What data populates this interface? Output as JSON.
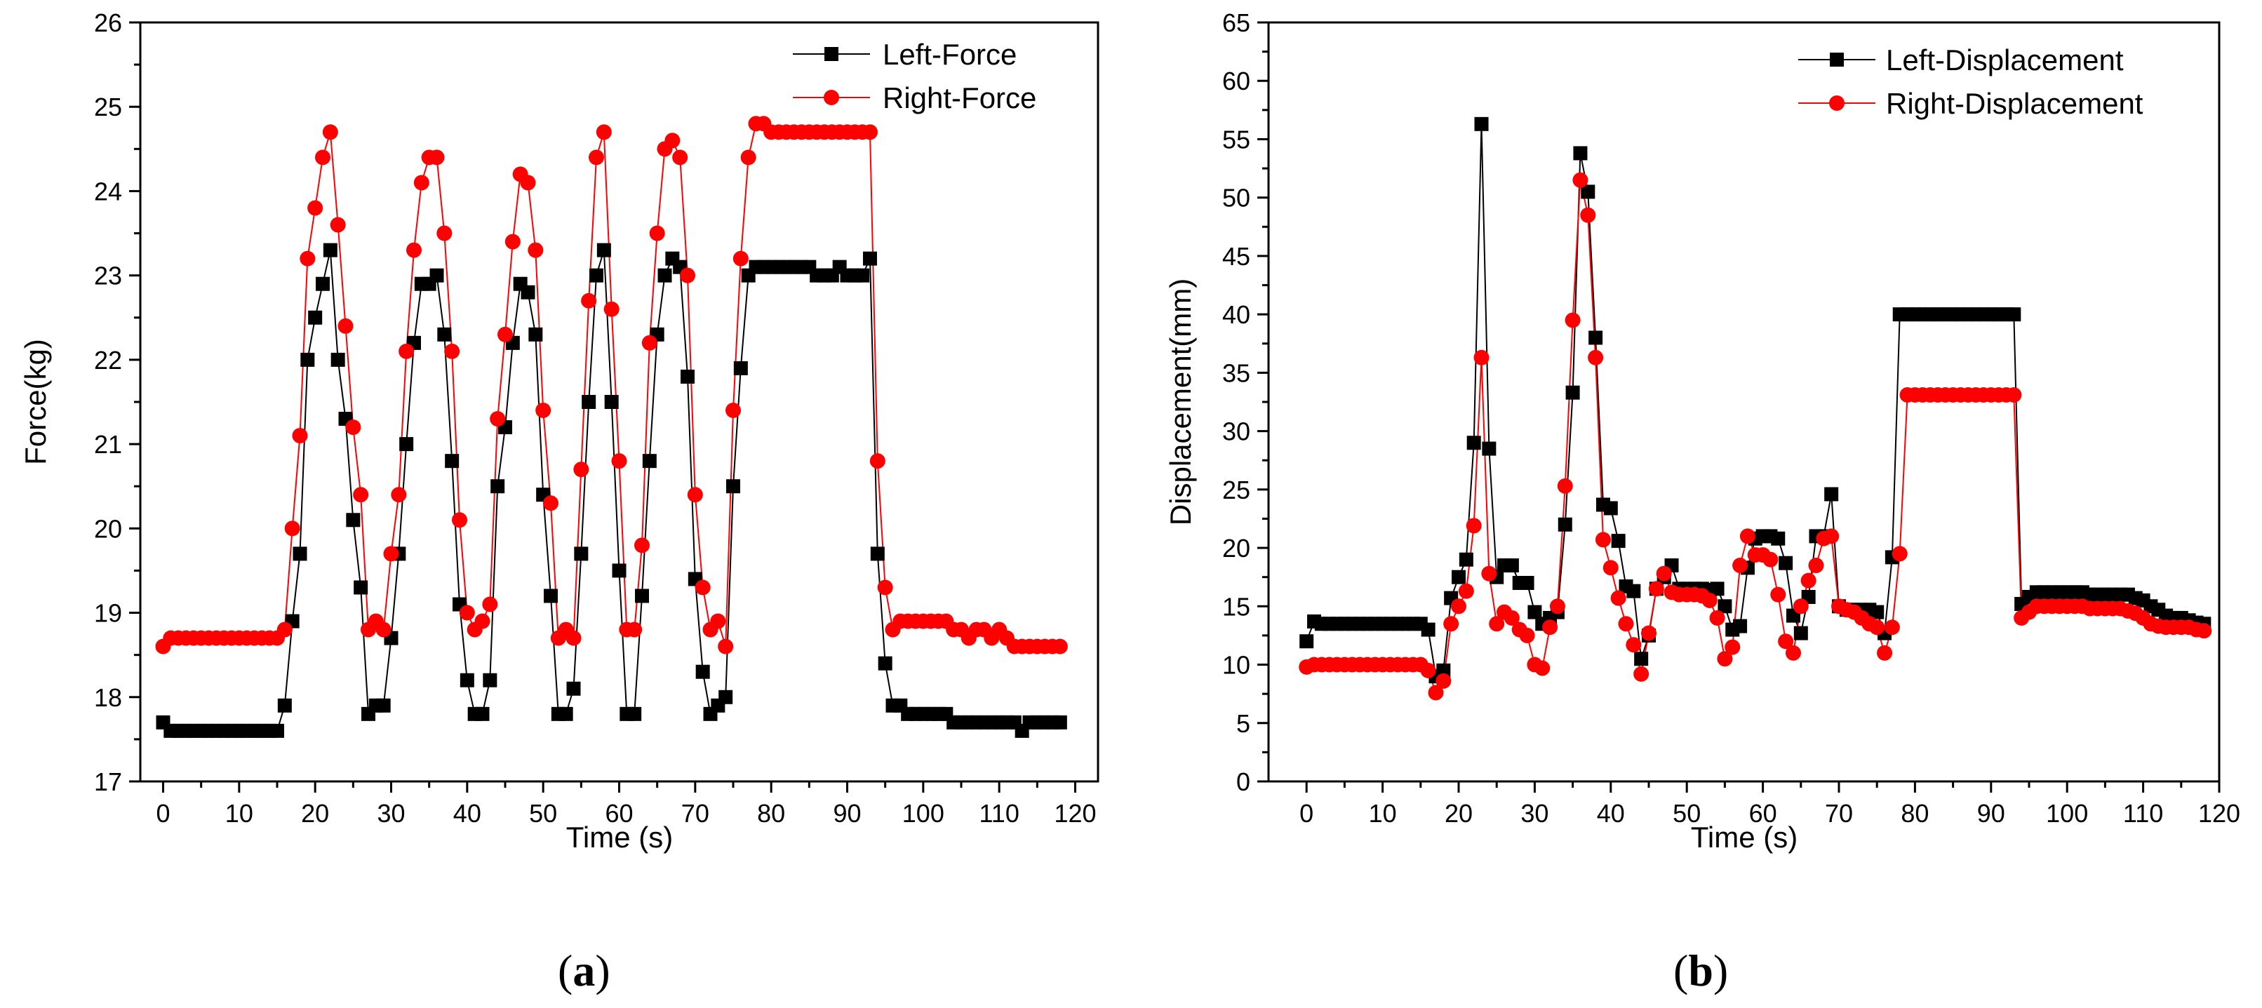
{
  "chart_data": [
    {
      "type": "line",
      "panel_label": "a",
      "title": "",
      "xlabel": "Time (s)",
      "ylabel": "Force(kg)",
      "xlim": [
        -3,
        123
      ],
      "ylim": [
        17,
        26
      ],
      "xticks": [
        0,
        10,
        20,
        30,
        40,
        50,
        60,
        70,
        80,
        90,
        100,
        110,
        120
      ],
      "yticks": [
        17,
        18,
        19,
        20,
        21,
        22,
        23,
        24,
        25,
        26
      ],
      "legend_position": "top-right",
      "series": [
        {
          "name": "Left-Force",
          "color": "#000000",
          "marker": "square",
          "x": [
            0,
            1,
            2,
            3,
            4,
            5,
            6,
            7,
            8,
            9,
            10,
            11,
            12,
            13,
            14,
            15,
            16,
            17,
            18,
            19,
            20,
            21,
            22,
            23,
            24,
            25,
            26,
            27,
            28,
            29,
            30,
            31,
            32,
            33,
            34,
            35,
            36,
            37,
            38,
            39,
            40,
            41,
            42,
            43,
            44,
            45,
            46,
            47,
            48,
            49,
            50,
            51,
            52,
            53,
            54,
            55,
            56,
            57,
            58,
            59,
            60,
            61,
            62,
            63,
            64,
            65,
            66,
            67,
            68,
            69,
            70,
            71,
            72,
            73,
            74,
            75,
            76,
            77,
            78,
            79,
            80,
            81,
            82,
            83,
            84,
            85,
            86,
            87,
            88,
            89,
            90,
            91,
            92,
            93,
            94,
            95,
            96,
            97,
            98,
            99,
            100,
            101,
            102,
            103,
            104,
            105,
            106,
            107,
            108,
            109,
            110,
            111,
            112,
            113,
            114,
            115,
            116,
            117,
            118
          ],
          "y": [
            17.7,
            17.6,
            17.6,
            17.6,
            17.6,
            17.6,
            17.6,
            17.6,
            17.6,
            17.6,
            17.6,
            17.6,
            17.6,
            17.6,
            17.6,
            17.6,
            17.9,
            18.9,
            19.7,
            22.0,
            22.5,
            22.9,
            23.3,
            22.0,
            21.3,
            20.1,
            19.3,
            17.8,
            17.9,
            17.9,
            18.7,
            19.7,
            21.0,
            22.2,
            22.9,
            22.9,
            23.0,
            22.3,
            20.8,
            19.1,
            18.2,
            17.8,
            17.8,
            18.2,
            20.5,
            21.2,
            22.2,
            22.9,
            22.8,
            22.3,
            20.4,
            19.2,
            17.8,
            17.8,
            18.1,
            19.7,
            21.5,
            23.0,
            23.3,
            21.5,
            19.5,
            17.8,
            17.8,
            19.2,
            20.8,
            22.3,
            23.0,
            23.2,
            23.1,
            21.8,
            19.4,
            18.3,
            17.8,
            17.9,
            18.0,
            20.5,
            21.9,
            23.0,
            23.1,
            23.1,
            23.1,
            23.1,
            23.1,
            23.1,
            23.1,
            23.1,
            23.0,
            23.0,
            23.0,
            23.1,
            23.0,
            23.0,
            23.0,
            23.2,
            19.7,
            18.4,
            17.9,
            17.9,
            17.8,
            17.8,
            17.8,
            17.8,
            17.8,
            17.8,
            17.7,
            17.7,
            17.7,
            17.7,
            17.7,
            17.7,
            17.7,
            17.7,
            17.7,
            17.6,
            17.7,
            17.7,
            17.7,
            17.7,
            17.7
          ]
        },
        {
          "name": "Right-Force",
          "color": "#ff0000",
          "marker": "circle",
          "x": [
            0,
            1,
            2,
            3,
            4,
            5,
            6,
            7,
            8,
            9,
            10,
            11,
            12,
            13,
            14,
            15,
            16,
            17,
            18,
            19,
            20,
            21,
            22,
            23,
            24,
            25,
            26,
            27,
            28,
            29,
            30,
            31,
            32,
            33,
            34,
            35,
            36,
            37,
            38,
            39,
            40,
            41,
            42,
            43,
            44,
            45,
            46,
            47,
            48,
            49,
            50,
            51,
            52,
            53,
            54,
            55,
            56,
            57,
            58,
            59,
            60,
            61,
            62,
            63,
            64,
            65,
            66,
            67,
            68,
            69,
            70,
            71,
            72,
            73,
            74,
            75,
            76,
            77,
            78,
            79,
            80,
            81,
            82,
            83,
            84,
            85,
            86,
            87,
            88,
            89,
            90,
            91,
            92,
            93,
            94,
            95,
            96,
            97,
            98,
            99,
            100,
            101,
            102,
            103,
            104,
            105,
            106,
            107,
            108,
            109,
            110,
            111,
            112,
            113,
            114,
            115,
            116,
            117,
            118
          ],
          "y": [
            18.6,
            18.7,
            18.7,
            18.7,
            18.7,
            18.7,
            18.7,
            18.7,
            18.7,
            18.7,
            18.7,
            18.7,
            18.7,
            18.7,
            18.7,
            18.7,
            18.8,
            20.0,
            21.1,
            23.2,
            23.8,
            24.4,
            24.7,
            23.6,
            22.4,
            21.2,
            20.4,
            18.8,
            18.9,
            18.8,
            19.7,
            20.4,
            22.1,
            23.3,
            24.1,
            24.4,
            24.4,
            23.5,
            22.1,
            20.1,
            19.0,
            18.8,
            18.9,
            19.1,
            21.3,
            22.3,
            23.4,
            24.2,
            24.1,
            23.3,
            21.4,
            20.3,
            18.7,
            18.8,
            18.7,
            20.7,
            22.7,
            24.4,
            24.7,
            22.6,
            20.8,
            18.8,
            18.8,
            19.8,
            22.2,
            23.5,
            24.5,
            24.6,
            24.4,
            23.0,
            20.4,
            19.3,
            18.8,
            18.9,
            18.6,
            21.4,
            23.2,
            24.4,
            24.8,
            24.8,
            24.7,
            24.7,
            24.7,
            24.7,
            24.7,
            24.7,
            24.7,
            24.7,
            24.7,
            24.7,
            24.7,
            24.7,
            24.7,
            24.7,
            20.8,
            19.3,
            18.8,
            18.9,
            18.9,
            18.9,
            18.9,
            18.9,
            18.9,
            18.9,
            18.8,
            18.8,
            18.7,
            18.8,
            18.8,
            18.7,
            18.8,
            18.7,
            18.6,
            18.6,
            18.6,
            18.6,
            18.6,
            18.6,
            18.6
          ]
        }
      ]
    },
    {
      "type": "line",
      "panel_label": "b",
      "title": "",
      "xlabel": "Time (s)",
      "ylabel": "Displacement(mm)",
      "xlim": [
        -5,
        120
      ],
      "ylim": [
        0,
        65
      ],
      "xticks": [
        0,
        10,
        20,
        30,
        40,
        50,
        60,
        70,
        80,
        90,
        100,
        110,
        120
      ],
      "yticks": [
        0,
        5,
        10,
        15,
        20,
        25,
        30,
        35,
        40,
        45,
        50,
        55,
        60,
        65
      ],
      "legend_position": "top-right",
      "series": [
        {
          "name": "Left-Displacement",
          "color": "#000000",
          "marker": "square",
          "x": [
            0,
            1,
            2,
            3,
            4,
            5,
            6,
            7,
            8,
            9,
            10,
            11,
            12,
            13,
            14,
            15,
            16,
            17,
            18,
            19,
            20,
            21,
            22,
            23,
            24,
            25,
            26,
            27,
            28,
            29,
            30,
            31,
            32,
            33,
            34,
            35,
            36,
            37,
            38,
            39,
            40,
            41,
            42,
            43,
            44,
            45,
            46,
            47,
            48,
            49,
            50,
            51,
            52,
            53,
            54,
            55,
            56,
            57,
            58,
            59,
            60,
            61,
            62,
            63,
            64,
            65,
            66,
            67,
            68,
            69,
            70,
            71,
            72,
            73,
            74,
            75,
            76,
            77,
            78,
            79,
            80,
            81,
            82,
            83,
            84,
            85,
            86,
            87,
            88,
            89,
            90,
            91,
            92,
            93,
            94,
            95,
            96,
            97,
            98,
            99,
            100,
            101,
            102,
            103,
            104,
            105,
            106,
            107,
            108,
            109,
            110,
            111,
            112,
            113,
            114,
            115,
            116,
            117,
            118
          ],
          "y": [
            12.0,
            13.7,
            13.5,
            13.5,
            13.5,
            13.5,
            13.5,
            13.5,
            13.5,
            13.5,
            13.5,
            13.5,
            13.5,
            13.5,
            13.5,
            13.5,
            13.0,
            9.0,
            9.5,
            15.7,
            17.5,
            19.0,
            29.0,
            56.3,
            28.5,
            17.5,
            18.5,
            18.5,
            17.0,
            17.0,
            14.5,
            13.5,
            14.0,
            14.5,
            22.0,
            33.3,
            53.8,
            50.5,
            38.0,
            23.7,
            23.4,
            20.6,
            16.7,
            16.3,
            10.5,
            12.5,
            16.5,
            17.5,
            18.5,
            16.5,
            16.5,
            16.5,
            16.5,
            16.4,
            16.5,
            15.0,
            13.0,
            13.3,
            18.3,
            20.8,
            21.0,
            21.0,
            20.8,
            18.7,
            14.2,
            12.7,
            15.8,
            21.0,
            21.0,
            24.6,
            15.0,
            14.7,
            14.7,
            14.7,
            14.7,
            14.5,
            12.7,
            19.2,
            40.0,
            40.0,
            40.0,
            40.0,
            40.0,
            40.0,
            40.0,
            40.0,
            40.0,
            40.0,
            40.0,
            40.0,
            40.0,
            40.0,
            40.0,
            40.0,
            15.2,
            15.8,
            16.2,
            16.2,
            16.2,
            16.2,
            16.2,
            16.2,
            16.2,
            16.0,
            16.0,
            16.0,
            16.0,
            16.0,
            16.0,
            15.7,
            15.5,
            15.0,
            14.7,
            14.2,
            14.0,
            14.0,
            13.8,
            13.6,
            13.5
          ]
        },
        {
          "name": "Right-Displacement",
          "color": "#ff0000",
          "marker": "circle",
          "x": [
            0,
            1,
            2,
            3,
            4,
            5,
            6,
            7,
            8,
            9,
            10,
            11,
            12,
            13,
            14,
            15,
            16,
            17,
            18,
            19,
            20,
            21,
            22,
            23,
            24,
            25,
            26,
            27,
            28,
            29,
            30,
            31,
            32,
            33,
            34,
            35,
            36,
            37,
            38,
            39,
            40,
            41,
            42,
            43,
            44,
            45,
            46,
            47,
            48,
            49,
            50,
            51,
            52,
            53,
            54,
            55,
            56,
            57,
            58,
            59,
            60,
            61,
            62,
            63,
            64,
            65,
            66,
            67,
            68,
            69,
            70,
            71,
            72,
            73,
            74,
            75,
            76,
            77,
            78,
            79,
            80,
            81,
            82,
            83,
            84,
            85,
            86,
            87,
            88,
            89,
            90,
            91,
            92,
            93,
            94,
            95,
            96,
            97,
            98,
            99,
            100,
            101,
            102,
            103,
            104,
            105,
            106,
            107,
            108,
            109,
            110,
            111,
            112,
            113,
            114,
            115,
            116,
            117,
            118
          ],
          "y": [
            9.8,
            10.0,
            10.0,
            10.0,
            10.0,
            10.0,
            10.0,
            10.0,
            10.0,
            10.0,
            10.0,
            10.0,
            10.0,
            10.0,
            10.0,
            10.0,
            9.5,
            7.6,
            8.6,
            13.5,
            15.0,
            16.3,
            21.9,
            36.3,
            17.8,
            13.5,
            14.5,
            14.0,
            13.0,
            12.5,
            10.0,
            9.7,
            13.2,
            15.0,
            25.3,
            39.5,
            51.5,
            48.5,
            36.3,
            20.7,
            18.3,
            15.7,
            13.5,
            11.7,
            9.2,
            12.7,
            16.5,
            17.8,
            16.2,
            16.0,
            16.0,
            16.0,
            15.9,
            15.5,
            14.0,
            10.5,
            11.5,
            18.5,
            21.0,
            19.4,
            19.4,
            19.0,
            16.0,
            12.0,
            11.0,
            15.0,
            17.2,
            18.5,
            20.8,
            21.0,
            15.0,
            14.7,
            14.5,
            14.0,
            13.5,
            13.2,
            11.0,
            13.2,
            19.5,
            33.1,
            33.1,
            33.1,
            33.1,
            33.1,
            33.1,
            33.1,
            33.1,
            33.1,
            33.1,
            33.1,
            33.1,
            33.1,
            33.1,
            33.1,
            14.0,
            14.5,
            15.0,
            15.0,
            15.0,
            15.0,
            15.0,
            15.0,
            15.0,
            14.8,
            14.8,
            14.8,
            14.8,
            14.8,
            14.6,
            14.4,
            14.0,
            13.5,
            13.3,
            13.2,
            13.2,
            13.2,
            13.2,
            13.0,
            12.9
          ]
        }
      ]
    }
  ]
}
